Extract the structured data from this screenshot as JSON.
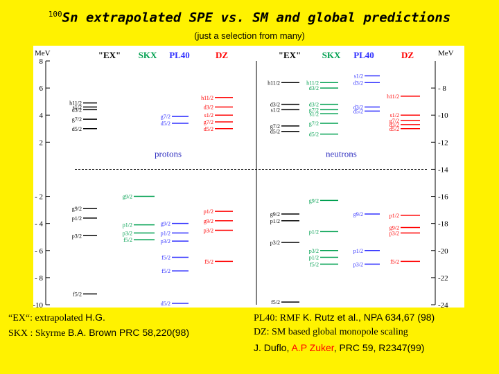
{
  "title": {
    "superscript": "100",
    "nucleus": "Sn",
    "text": " extrapolated SPE vs. SM and global predictions"
  },
  "subtitle": "(just a selection from many)",
  "colors": {
    "background": "#fff200",
    "EX": "#000000",
    "SKX": "#00a050",
    "PL40": "#3030ff",
    "DZ": "#ff0000",
    "axis_label": "#3030c0"
  },
  "diagram": {
    "unit_left": "MeV",
    "unit_right": "MeV",
    "left_axis": {
      "min": -10,
      "max": 8,
      "ticks": [
        -10,
        -8,
        -6,
        -4,
        -2,
        2,
        4,
        6,
        8
      ]
    },
    "right_axis": {
      "min": -24,
      "max": -6,
      "ticks": [
        -24,
        -22,
        -20,
        -18,
        -16,
        -14,
        -12,
        -10,
        -8
      ]
    },
    "left_ticks_labels": [
      "-10",
      "- 8",
      "- 6",
      "- 4",
      "- 2",
      "2",
      "4",
      "6",
      "8"
    ],
    "right_ticks_labels": [
      "-24",
      "-22",
      "-20",
      "-18",
      "-16",
      "-14",
      "-12",
      "-10",
      "- 8"
    ],
    "protons_label": "protons",
    "neutrons_label": "neutrons",
    "columns": {
      "EX": "\"EX\"",
      "SKX": "SKX",
      "PL40": "PL40",
      "DZ": "DZ"
    },
    "protons": {
      "EX": [
        {
          "label": "h11/2",
          "e": 4.9
        },
        {
          "label": "s1/2",
          "e": 4.6
        },
        {
          "label": "d3/2",
          "e": 4.4
        },
        {
          "label": "g7/2",
          "e": 3.7
        },
        {
          "label": "d5/2",
          "e": 3.0
        },
        {
          "label": "g9/2",
          "e": -2.9
        },
        {
          "label": "p1/2",
          "e": -3.6
        },
        {
          "label": "p3/2",
          "e": -4.9
        },
        {
          "label": "f5/2",
          "e": -9.2
        }
      ],
      "SKX": [
        {
          "label": "g9/2",
          "e": -2.0
        },
        {
          "label": "p1/2",
          "e": -4.1
        },
        {
          "label": "p3/2",
          "e": -4.7
        },
        {
          "label": "f5/2",
          "e": -5.2
        }
      ],
      "PL40": [
        {
          "label": "g7/2",
          "e": 3.9
        },
        {
          "label": "d5/2",
          "e": 3.4
        },
        {
          "label": "g9/2",
          "e": -4.0
        },
        {
          "label": "p1/2",
          "e": -4.7
        },
        {
          "label": "p3/2",
          "e": -5.3
        },
        {
          "label": "f5/2",
          "e": -6.5
        },
        {
          "label": "f5/2",
          "e": -7.5
        },
        {
          "label": "d5/2",
          "e": -9.9
        }
      ],
      "DZ": [
        {
          "label": "h11/2",
          "e": 5.3
        },
        {
          "label": "d3/2",
          "e": 4.6
        },
        {
          "label": "s1/2",
          "e": 4.0
        },
        {
          "label": "g7/2",
          "e": 3.5
        },
        {
          "label": "d5/2",
          "e": 3.0
        },
        {
          "label": "p1/2",
          "e": -3.1
        },
        {
          "label": "g9/2",
          "e": -3.8
        },
        {
          "label": "p3/2",
          "e": -4.5
        },
        {
          "label": "f5/2",
          "e": -6.8
        }
      ]
    },
    "neutrons": {
      "EX": [
        {
          "label": "h11/2",
          "e": -7.6
        },
        {
          "label": "d3/2",
          "e": -9.2
        },
        {
          "label": "s1/2",
          "e": -9.6
        },
        {
          "label": "g7/2",
          "e": -10.8
        },
        {
          "label": "d5/2",
          "e": -11.2
        },
        {
          "label": "g9/2",
          "e": -17.3
        },
        {
          "label": "p1/2",
          "e": -17.8
        },
        {
          "label": "p3/2",
          "e": -19.4
        },
        {
          "label": "f5/2",
          "e": -23.8
        }
      ],
      "SKX": [
        {
          "label": "h11/2",
          "e": -7.6
        },
        {
          "label": "d3/2",
          "e": -8.0
        },
        {
          "label": "d3/2",
          "e": -9.2
        },
        {
          "label": "g7/2",
          "e": -9.6
        },
        {
          "label": "s1/2",
          "e": -9.9
        },
        {
          "label": "g7/2",
          "e": -10.6
        },
        {
          "label": "d5/2",
          "e": -11.4
        },
        {
          "label": "g9/2",
          "e": -16.3
        },
        {
          "label": "p1/2",
          "e": -18.6
        },
        {
          "label": "p3/2",
          "e": -20.0
        },
        {
          "label": "p1/2",
          "e": -20.5
        },
        {
          "label": "f5/2",
          "e": -21.0
        }
      ],
      "PL40": [
        {
          "label": "s1/2",
          "e": -7.1
        },
        {
          "label": "d3/2",
          "e": -7.6
        },
        {
          "label": "d3/2",
          "e": -9.4
        },
        {
          "label": "d5/2",
          "e": -9.7
        },
        {
          "label": "g9/2",
          "e": -17.3
        },
        {
          "label": "p1/2",
          "e": -20.0
        },
        {
          "label": "p3/2",
          "e": -21.0
        }
      ],
      "DZ": [
        {
          "label": "h11/2",
          "e": -8.6
        },
        {
          "label": "s1/2",
          "e": -10.0
        },
        {
          "label": "g7/2",
          "e": -10.4
        },
        {
          "label": "d3/2",
          "e": -10.7
        },
        {
          "label": "d5/2",
          "e": -11.0
        },
        {
          "label": "p1/2",
          "e": -17.4
        },
        {
          "label": "g9/2",
          "e": -18.3
        },
        {
          "label": "p3/2",
          "e": -18.7
        },
        {
          "label": "f5/2",
          "e": -20.8
        }
      ]
    }
  },
  "footer": {
    "left": [
      {
        "prefix": "“EX“: extrapolated ",
        "rest": "H.G."
      },
      {
        "prefix": "SKX : Skyrme ",
        "rest": "B.A. Brown PRC 58,220(98)"
      }
    ],
    "right_line1_prefix": "PL40: RMF ",
    "right_line1_rest": "K. Rutz et al., NPA 634,67 (98)",
    "right_line2": "DZ:  SM based global monopole scaling",
    "right_line3": {
      "a": "J. Duflo, ",
      "b": "A.P Zuker",
      "c": ", PRC 59, R2347(99)"
    }
  }
}
